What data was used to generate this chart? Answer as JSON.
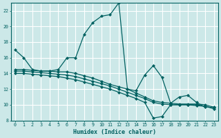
{
  "xlabel": "Humidex (Indice chaleur)",
  "xlim": [
    -0.5,
    23.5
  ],
  "ylim": [
    8,
    23
  ],
  "yticks": [
    8,
    10,
    12,
    14,
    16,
    18,
    20,
    22
  ],
  "xticks": [
    0,
    1,
    2,
    3,
    4,
    5,
    6,
    7,
    8,
    9,
    10,
    11,
    12,
    13,
    14,
    15,
    16,
    17,
    18,
    19,
    20,
    21,
    22,
    23
  ],
  "background_color": "#cce8e8",
  "grid_color": "#ffffff",
  "line_color": "#006060",
  "lines": [
    {
      "x": [
        0,
        1,
        2,
        3,
        4,
        5,
        6,
        7,
        8,
        9,
        10,
        11,
        12,
        13,
        14,
        15,
        16,
        17,
        18,
        19,
        20,
        21,
        22
      ],
      "y": [
        17,
        16,
        14.5,
        14.3,
        14.3,
        14.5,
        16.0,
        16.0,
        19.0,
        20.5,
        21.3,
        21.5,
        23.0,
        12.0,
        11.8,
        13.8,
        15.0,
        13.5,
        10.2,
        11.0,
        11.2,
        10.3,
        9.7
      ]
    },
    {
      "x": [
        0,
        1,
        2,
        3,
        4,
        5,
        6,
        7,
        8,
        9,
        10,
        11,
        12,
        13,
        14,
        15,
        16,
        17,
        18,
        19,
        20,
        21,
        22,
        23
      ],
      "y": [
        14.5,
        14.5,
        14.4,
        14.3,
        14.3,
        14.2,
        14.2,
        14.0,
        13.7,
        13.4,
        13.0,
        12.6,
        12.3,
        12.0,
        11.5,
        11.0,
        10.5,
        10.3,
        10.2,
        10.1,
        10.1,
        10.1,
        10.0,
        9.7
      ]
    },
    {
      "x": [
        0,
        1,
        2,
        3,
        4,
        5,
        6,
        7,
        8,
        9,
        10,
        11,
        12,
        13,
        14,
        15,
        16,
        17,
        18,
        19,
        20,
        21,
        22,
        23
      ],
      "y": [
        14.3,
        14.3,
        14.2,
        14.1,
        14.0,
        13.9,
        13.8,
        13.6,
        13.3,
        13.0,
        12.7,
        12.4,
        12.0,
        11.6,
        11.2,
        10.8,
        10.3,
        10.1,
        10.0,
        10.0,
        10.0,
        9.9,
        9.8,
        9.6
      ]
    },
    {
      "x": [
        0,
        1,
        2,
        3,
        4,
        5,
        6,
        7,
        8,
        9,
        10,
        11,
        12,
        13,
        14,
        15,
        16,
        17,
        18,
        19,
        20,
        21,
        22,
        23
      ],
      "y": [
        14.0,
        14.0,
        13.9,
        13.8,
        13.7,
        13.6,
        13.4,
        13.2,
        12.9,
        12.6,
        12.3,
        12.0,
        11.6,
        11.2,
        10.8,
        10.3,
        8.3,
        8.5,
        10.0,
        10.0,
        10.0,
        10.0,
        9.8,
        9.5
      ]
    }
  ],
  "marker": "D",
  "markersize": 2.0,
  "linewidth": 0.9
}
